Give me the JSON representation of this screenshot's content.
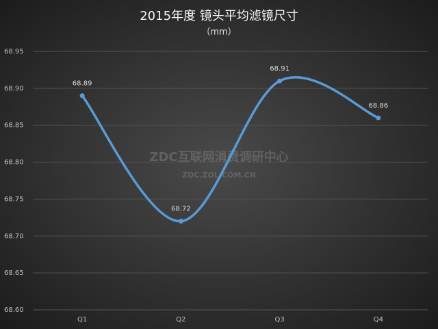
{
  "chart_data": {
    "type": "line",
    "title": "2015年度 镜头平均滤镜尺寸",
    "subtitle": "（mm）",
    "categories": [
      "Q1",
      "Q2",
      "Q3",
      "Q4"
    ],
    "series": [
      {
        "name": "镜头平均滤镜尺寸",
        "color": "#5b9bd5",
        "values": [
          68.89,
          68.72,
          68.91,
          68.86
        ]
      }
    ],
    "ylim": [
      68.6,
      68.95
    ],
    "yticks": [
      {
        "value": 68.6,
        "label": "68.60"
      },
      68.65,
      {
        "value": 68.7,
        "label": "68.70"
      },
      68.75,
      {
        "value": 68.8,
        "label": "68.80"
      },
      68.85,
      {
        "value": 68.9,
        "label": "68.90"
      },
      68.95
    ],
    "grid": true,
    "smooth": true,
    "watermark": {
      "line1": "ZDC互联网消费调研中心",
      "line2": "ZDC.ZOL.COM.CN"
    }
  }
}
